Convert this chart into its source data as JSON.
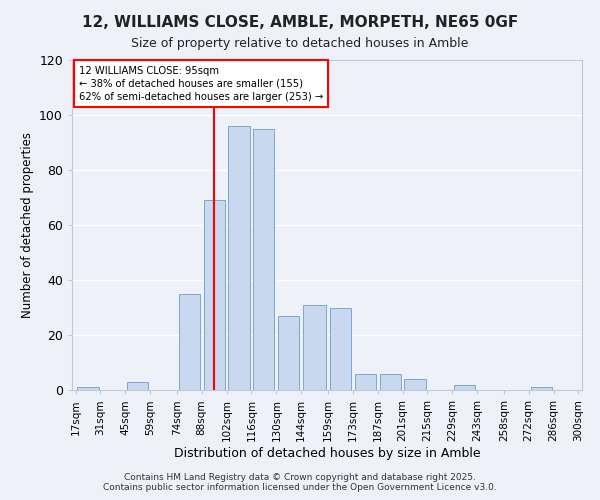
{
  "title": "12, WILLIAMS CLOSE, AMBLE, MORPETH, NE65 0GF",
  "subtitle": "Size of property relative to detached houses in Amble",
  "xlabel": "Distribution of detached houses by size in Amble",
  "ylabel": "Number of detached properties",
  "bin_labels": [
    "17sqm",
    "31sqm",
    "45sqm",
    "59sqm",
    "74sqm",
    "88sqm",
    "102sqm",
    "116sqm",
    "130sqm",
    "144sqm",
    "159sqm",
    "173sqm",
    "187sqm",
    "201sqm",
    "215sqm",
    "229sqm",
    "243sqm",
    "258sqm",
    "272sqm",
    "286sqm",
    "300sqm"
  ],
  "bin_edges": [
    17,
    31,
    45,
    59,
    74,
    88,
    102,
    116,
    130,
    144,
    159,
    173,
    187,
    201,
    215,
    229,
    243,
    258,
    272,
    286,
    300
  ],
  "bar_heights": [
    1,
    0,
    3,
    0,
    35,
    69,
    96,
    95,
    27,
    31,
    30,
    6,
    6,
    4,
    0,
    2,
    0,
    0,
    1,
    0
  ],
  "bar_color": "#c8d8ee",
  "bar_edge_color": "#7ba7d4",
  "red_line_x": 95,
  "annotation_title": "12 WILLIAMS CLOSE: 95sqm",
  "annotation_line1": "← 38% of detached houses are smaller (155)",
  "annotation_line2": "62% of semi-detached houses are larger (253) →",
  "footer_line1": "Contains HM Land Registry data © Crown copyright and database right 2025.",
  "footer_line2": "Contains public sector information licensed under the Open Government Licence v3.0.",
  "ylim": [
    0,
    120
  ],
  "background_color": "#eef2f8",
  "grid_color": "#ffffff",
  "spine_color": "#c0c8d8"
}
